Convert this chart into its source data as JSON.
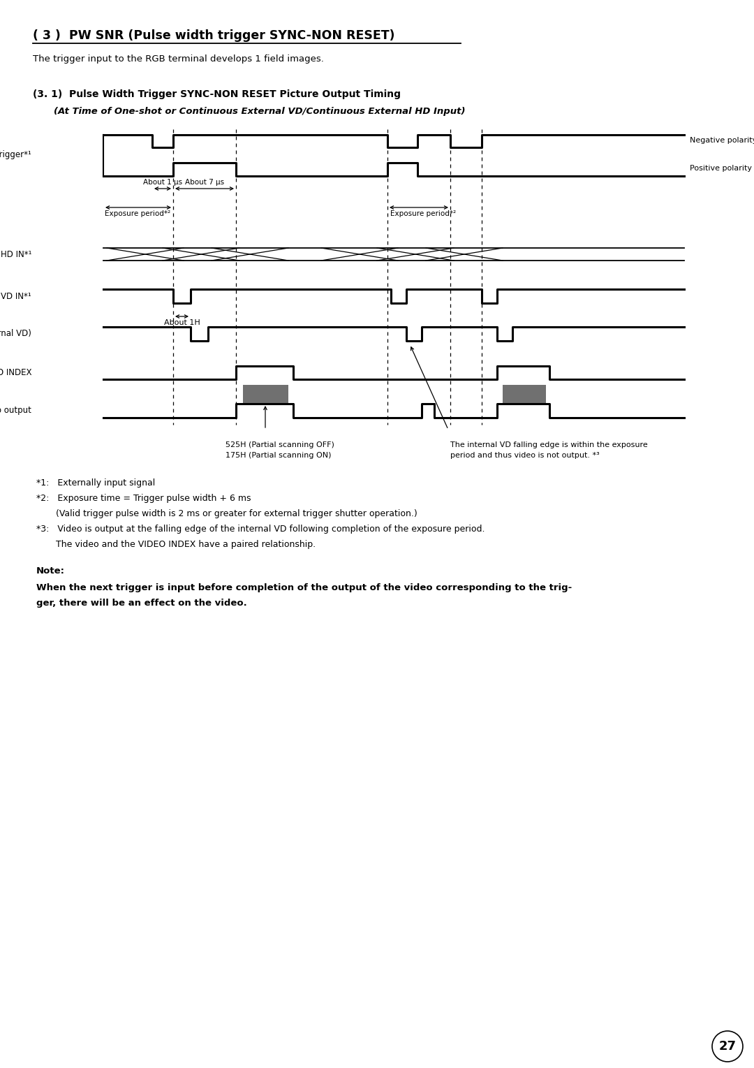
{
  "title": "( 3 )  PW SNR (Pulse width trigger SYNC-NON RESET)",
  "subtitle": "The trigger input to the RGB terminal develops 1 field images.",
  "section_title": "(3. 1)  Pulse Width Trigger SYNC-NON RESET Picture Output Timing",
  "subsection_title": "(At Time of One-shot or Continuous External VD/Continuous External HD Input)",
  "bg_color": "#ffffff",
  "signal_color": "#000000",
  "gray_fill": "#707070",
  "note_label": "Note:",
  "note_text_line1": "When the next trigger is input before completion of the output of the video corresponding to the trig-",
  "note_text_line2": "ger, there will be an effect on the video.",
  "footnote1": "*1:   Externally input signal",
  "footnote2": "*2:   Exposure time = Trigger pulse width + 6 ms",
  "footnote2b": "       (Valid trigger pulse width is 2 ms or greater for external trigger shutter operation.)",
  "footnote3": "*3:   Video is output at the falling edge of the internal VD following completion of the exposure period.",
  "footnote3b": "       The video and the VIDEO INDEX have a paired relationship.",
  "page_number": "27"
}
